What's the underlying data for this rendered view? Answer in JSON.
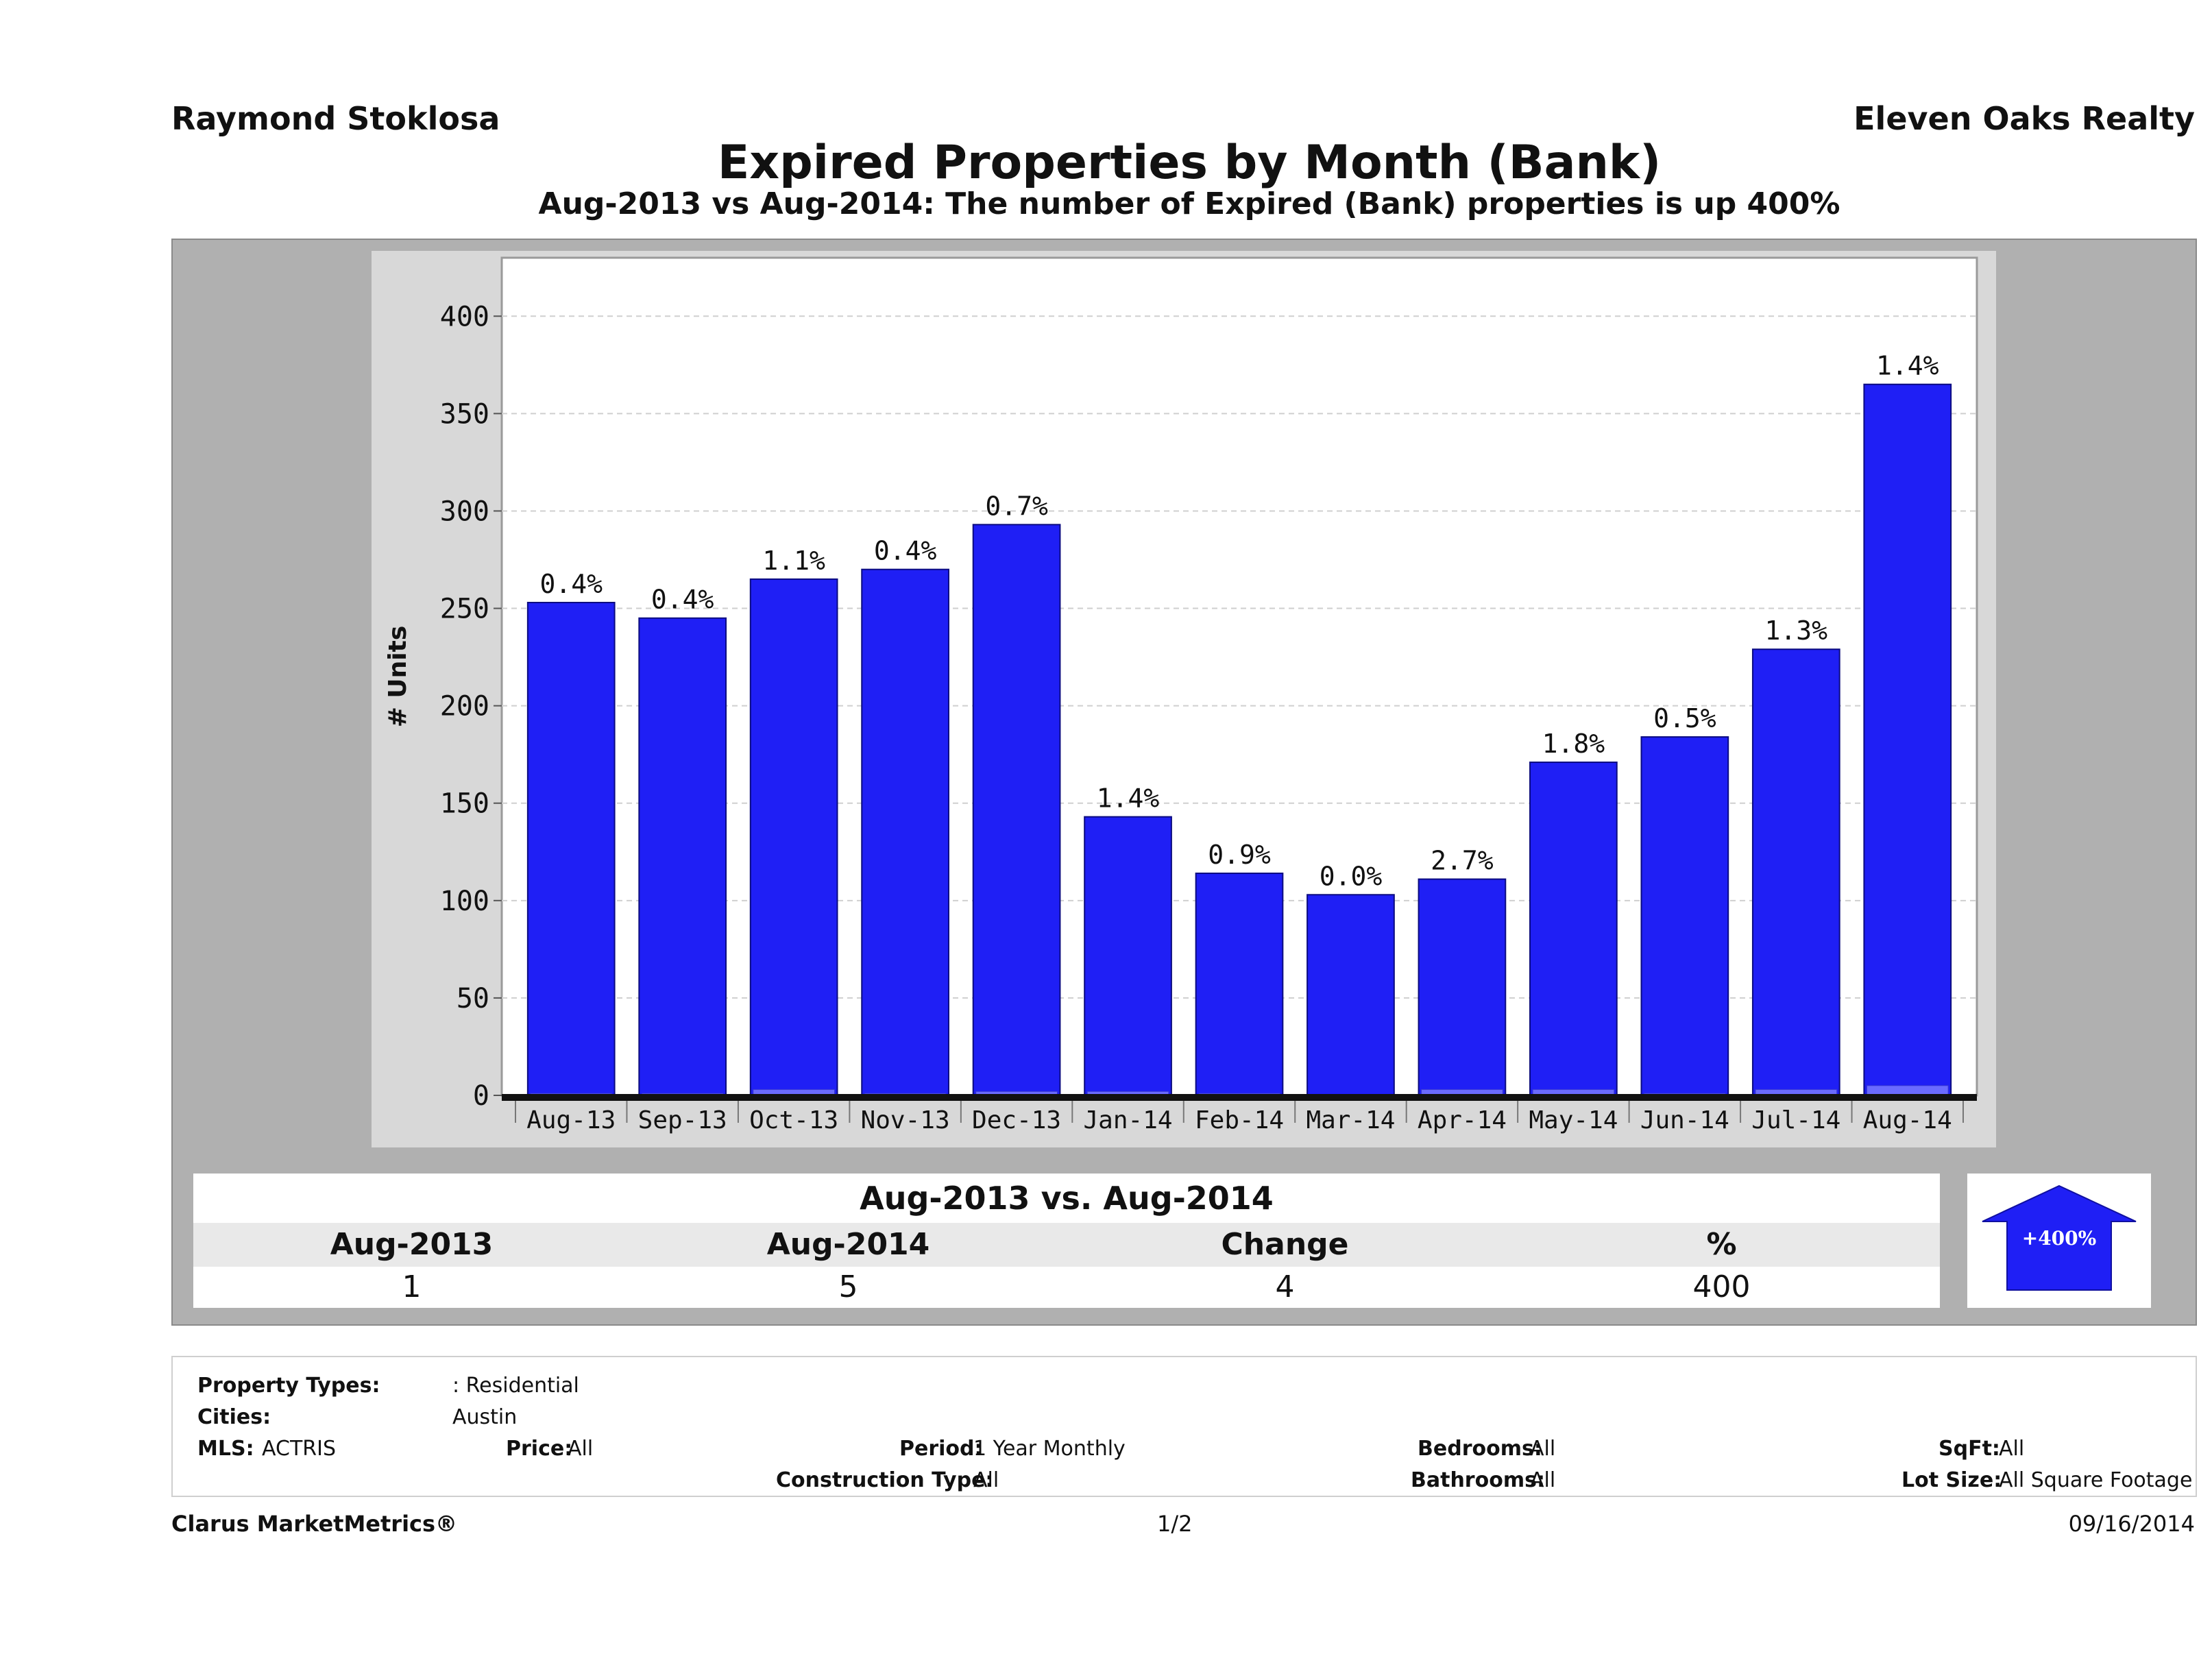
{
  "header": {
    "agent": "Raymond Stoklosa",
    "company": "Eleven Oaks Realty"
  },
  "chart_data": {
    "type": "bar",
    "title": "Expired Properties by Month (Bank)",
    "subtitle": "Aug-2013 vs Aug-2014: The number of Expired (Bank)  properties is up 400%",
    "ylabel": "# Units",
    "xlabel": "",
    "ylim": [
      0,
      430
    ],
    "yticks": [
      0,
      50,
      100,
      150,
      200,
      250,
      300,
      350,
      400
    ],
    "grid": true,
    "categories": [
      "Aug-13",
      "Sep-13",
      "Oct-13",
      "Nov-13",
      "Dec-13",
      "Jan-14",
      "Feb-14",
      "Mar-14",
      "Apr-14",
      "May-14",
      "Jun-14",
      "Jul-14",
      "Aug-14"
    ],
    "values": [
      253,
      245,
      265,
      270,
      293,
      143,
      114,
      103,
      111,
      171,
      184,
      229,
      365
    ],
    "bank_values": [
      1,
      1,
      3,
      1,
      2,
      2,
      1,
      0,
      3,
      3,
      1,
      3,
      5
    ],
    "labels": [
      "0.4%",
      "0.4%",
      "1.1%",
      "0.4%",
      "0.7%",
      "1.4%",
      "0.9%",
      "0.0%",
      "2.7%",
      "1.8%",
      "0.5%",
      "1.3%",
      "1.4%"
    ],
    "bar_color": "#1f1ff5"
  },
  "comparison": {
    "title": "Aug-2013 vs. Aug-2014",
    "headers": [
      "Aug-2013",
      "Aug-2014",
      "Change",
      "%"
    ],
    "values": [
      "1",
      "5",
      "4",
      "400"
    ],
    "badge": "+400%",
    "badge_color": "#1f1ff5"
  },
  "filters": {
    "property_types_label": "Property Types:",
    "property_types_value": ": Residential",
    "cities_label": "Cities:",
    "cities_value": "Austin",
    "mls_label": "MLS:",
    "mls_value": "ACTRIS",
    "price_label": "Price:",
    "price_value": "All",
    "period_label": "Period:",
    "period_value": "1 Year Monthly",
    "bedrooms_label": "Bedrooms:",
    "bedrooms_value": "All",
    "sqft_label": "SqFt:",
    "sqft_value": "All",
    "construction_label": "Construction Type:",
    "construction_value": "All",
    "bathrooms_label": "Bathrooms:",
    "bathrooms_value": "All",
    "lotsize_label": "Lot Size:",
    "lotsize_value": "All Square Footage"
  },
  "footer": {
    "brand": "Clarus MarketMetrics®",
    "page": "1/2",
    "date": "09/16/2014"
  }
}
